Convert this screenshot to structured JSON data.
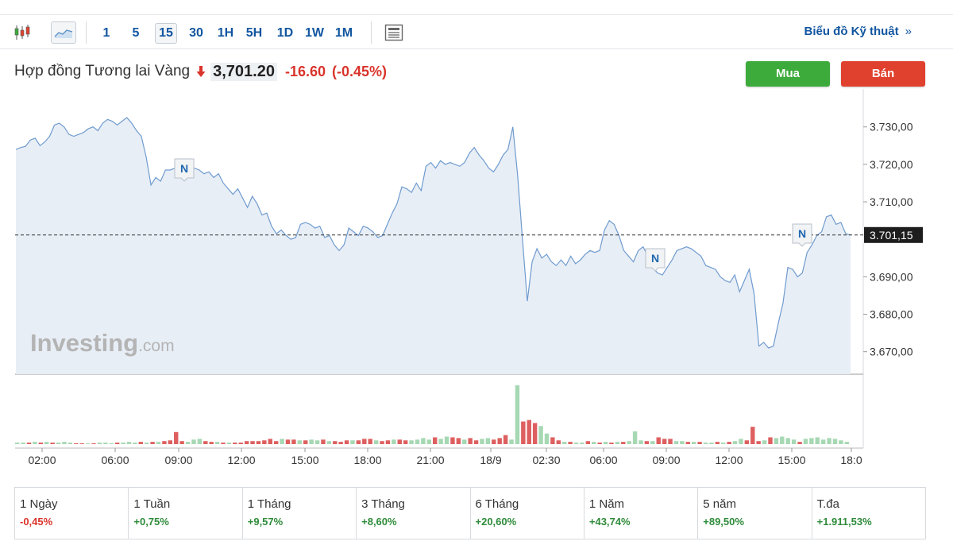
{
  "toolbar": {
    "intervals": [
      "1",
      "5",
      "15",
      "30",
      "1H",
      "5H",
      "1D",
      "1W",
      "1M"
    ],
    "active_interval": "15",
    "tech_link": "Biểu đồ Kỹ thuật",
    "tech_arrow": "»"
  },
  "instrument": {
    "name": "Hợp đồng Tương lai Vàng",
    "price": "3,701.20",
    "change": "-16.60",
    "change_pct": "(-0.45%)",
    "change_color": "#d9342b"
  },
  "actions": {
    "buy": "Mua",
    "sell": "Bán"
  },
  "watermark": {
    "brand": "Investing",
    "suffix": ".com"
  },
  "news_marker": "N",
  "chart_data": {
    "type": "area",
    "y_ticks": [
      "3.730,00",
      "3.720,00",
      "3.710,00",
      "3.700,00",
      "3.690,00",
      "3.680,00",
      "3.670,00"
    ],
    "y_tick_values": [
      3730,
      3720,
      3710,
      3700,
      3690,
      3680,
      3670
    ],
    "ylim": [
      3664,
      3738
    ],
    "current_value": 3701.15,
    "current_label": "3.701,15",
    "x_ticks": [
      "02:00",
      "06:00",
      "09:00",
      "12:00",
      "15:00",
      "18:00",
      "21:00",
      "18/9",
      "02:30",
      "06:00",
      "09:00",
      "12:00",
      "15:00",
      "18:0"
    ],
    "series": [
      {
        "values": [
          3724.0,
          3724.5,
          3724.8,
          3726.5,
          3727.0,
          3725.0,
          3726.0,
          3727.5,
          3730.5,
          3731.0,
          3730.0,
          3728.0,
          3727.5,
          3728.0,
          3728.5,
          3729.5,
          3730.0,
          3729.0,
          3731.0,
          3732.0,
          3731.5,
          3730.5,
          3731.5,
          3732.5,
          3731.0,
          3729.0,
          3727.5,
          3722.0,
          3714.5,
          3716.5,
          3715.5,
          3718.5,
          3718.5,
          3719.0,
          3718.0,
          3718.5,
          3718.5,
          3719.0,
          3718.5,
          3717.5,
          3718.0,
          3716.5,
          3717.5,
          3715.0,
          3713.5,
          3712.0,
          3713.5,
          3711.0,
          3708.5,
          3711.5,
          3709.5,
          3706.5,
          3707.0,
          3703.5,
          3701.5,
          3702.5,
          3701.0,
          3700.0,
          3700.5,
          3704.0,
          3704.5,
          3704.0,
          3703.0,
          3703.5,
          3700.5,
          3701.0,
          3698.5,
          3697.0,
          3698.5,
          3703.0,
          3702.0,
          3701.0,
          3703.5,
          3703.0,
          3702.0,
          3700.5,
          3701.0,
          3704.0,
          3707.0,
          3709.5,
          3714.0,
          3713.5,
          3712.5,
          3715.0,
          3713.0,
          3719.5,
          3720.5,
          3719.0,
          3721.0,
          3720.0,
          3720.5,
          3720.0,
          3719.5,
          3720.5,
          3723.0,
          3724.5,
          3722.5,
          3721.0,
          3719.0,
          3718.0,
          3720.0,
          3722.5,
          3724.0,
          3730.0,
          3717.0,
          3700.0,
          3683.5,
          3694.0,
          3697.5,
          3695.0,
          3696.0,
          3694.0,
          3693.0,
          3694.5,
          3693.0,
          3695.5,
          3693.5,
          3694.5,
          3696.0,
          3697.0,
          3696.5,
          3697.0,
          3702.5,
          3705.0,
          3704.0,
          3701.0,
          3697.0,
          3695.5,
          3694.0,
          3697.0,
          3698.0,
          3695.5,
          3692.5,
          3691.0,
          3690.5,
          3692.5,
          3694.5,
          3697.0,
          3697.5,
          3698.0,
          3697.5,
          3696.5,
          3695.5,
          3693.0,
          3692.5,
          3692.0,
          3690.0,
          3689.0,
          3688.5,
          3690.5,
          3686.0,
          3689.0,
          3692.0,
          3685.5,
          3671.5,
          3672.5,
          3671.0,
          3671.5,
          3677.5,
          3683.0,
          3692.5,
          3692.0,
          3690.0,
          3691.0,
          3696.5,
          3698.5,
          3701.0,
          3702.0,
          3706.0,
          3706.5,
          3704.0,
          3704.5,
          3701.5,
          3701.15
        ]
      }
    ],
    "volume": [
      {
        "v": 2,
        "c": "g"
      },
      {
        "v": 2,
        "c": "g"
      },
      {
        "v": 2,
        "c": "r"
      },
      {
        "v": 3,
        "c": "g"
      },
      {
        "v": 2,
        "c": "r"
      },
      {
        "v": 3,
        "c": "g"
      },
      {
        "v": 2,
        "c": "r"
      },
      {
        "v": 2,
        "c": "g"
      },
      {
        "v": 3,
        "c": "g"
      },
      {
        "v": 2,
        "c": "g"
      },
      {
        "v": 1,
        "c": "r"
      },
      {
        "v": 1,
        "c": "r"
      },
      {
        "v": 1,
        "c": "g"
      },
      {
        "v": 1,
        "c": "r"
      },
      {
        "v": 2,
        "c": "g"
      },
      {
        "v": 2,
        "c": "g"
      },
      {
        "v": 1,
        "c": "g"
      },
      {
        "v": 2,
        "c": "r"
      },
      {
        "v": 2,
        "c": "g"
      },
      {
        "v": 3,
        "c": "g"
      },
      {
        "v": 2,
        "c": "g"
      },
      {
        "v": 3,
        "c": "r"
      },
      {
        "v": 2,
        "c": "g"
      },
      {
        "v": 3,
        "c": "r"
      },
      {
        "v": 3,
        "c": "g"
      },
      {
        "v": 4,
        "c": "r"
      },
      {
        "v": 5,
        "c": "r"
      },
      {
        "v": 16,
        "c": "r"
      },
      {
        "v": 4,
        "c": "r"
      },
      {
        "v": 3,
        "c": "g"
      },
      {
        "v": 6,
        "c": "g"
      },
      {
        "v": 7,
        "c": "g"
      },
      {
        "v": 4,
        "c": "r"
      },
      {
        "v": 3,
        "c": "r"
      },
      {
        "v": 3,
        "c": "g"
      },
      {
        "v": 2,
        "c": "r"
      },
      {
        "v": 2,
        "c": "g"
      },
      {
        "v": 2,
        "c": "r"
      },
      {
        "v": 2,
        "c": "r"
      },
      {
        "v": 4,
        "c": "r"
      },
      {
        "v": 4,
        "c": "r"
      },
      {
        "v": 4,
        "c": "r"
      },
      {
        "v": 5,
        "c": "r"
      },
      {
        "v": 7,
        "c": "r"
      },
      {
        "v": 4,
        "c": "r"
      },
      {
        "v": 7,
        "c": "g"
      },
      {
        "v": 6,
        "c": "r"
      },
      {
        "v": 6,
        "c": "r"
      },
      {
        "v": 5,
        "c": "g"
      },
      {
        "v": 5,
        "c": "r"
      },
      {
        "v": 6,
        "c": "g"
      },
      {
        "v": 5,
        "c": "g"
      },
      {
        "v": 6,
        "c": "r"
      },
      {
        "v": 4,
        "c": "g"
      },
      {
        "v": 4,
        "c": "r"
      },
      {
        "v": 3,
        "c": "r"
      },
      {
        "v": 5,
        "c": "r"
      },
      {
        "v": 5,
        "c": "g"
      },
      {
        "v": 5,
        "c": "r"
      },
      {
        "v": 7,
        "c": "r"
      },
      {
        "v": 7,
        "c": "r"
      },
      {
        "v": 5,
        "c": "g"
      },
      {
        "v": 4,
        "c": "r"
      },
      {
        "v": 5,
        "c": "r"
      },
      {
        "v": 6,
        "c": "g"
      },
      {
        "v": 6,
        "c": "r"
      },
      {
        "v": 5,
        "c": "r"
      },
      {
        "v": 5,
        "c": "g"
      },
      {
        "v": 6,
        "c": "g"
      },
      {
        "v": 8,
        "c": "g"
      },
      {
        "v": 6,
        "c": "g"
      },
      {
        "v": 9,
        "c": "r"
      },
      {
        "v": 7,
        "c": "g"
      },
      {
        "v": 10,
        "c": "g"
      },
      {
        "v": 9,
        "c": "r"
      },
      {
        "v": 8,
        "c": "r"
      },
      {
        "v": 6,
        "c": "g"
      },
      {
        "v": 8,
        "c": "r"
      },
      {
        "v": 5,
        "c": "r"
      },
      {
        "v": 7,
        "c": "g"
      },
      {
        "v": 8,
        "c": "g"
      },
      {
        "v": 6,
        "c": "r"
      },
      {
        "v": 8,
        "c": "r"
      },
      {
        "v": 12,
        "c": "r"
      },
      {
        "v": 6,
        "c": "g"
      },
      {
        "v": 78,
        "c": "g"
      },
      {
        "v": 30,
        "c": "r"
      },
      {
        "v": 32,
        "c": "r"
      },
      {
        "v": 28,
        "c": "r"
      },
      {
        "v": 24,
        "c": "g"
      },
      {
        "v": 14,
        "c": "g"
      },
      {
        "v": 9,
        "c": "r"
      },
      {
        "v": 5,
        "c": "r"
      },
      {
        "v": 3,
        "c": "g"
      },
      {
        "v": 3,
        "c": "r"
      },
      {
        "v": 2,
        "c": "g"
      },
      {
        "v": 2,
        "c": "g"
      },
      {
        "v": 4,
        "c": "r"
      },
      {
        "v": 3,
        "c": "g"
      },
      {
        "v": 2,
        "c": "r"
      },
      {
        "v": 3,
        "c": "g"
      },
      {
        "v": 2,
        "c": "r"
      },
      {
        "v": 3,
        "c": "g"
      },
      {
        "v": 3,
        "c": "r"
      },
      {
        "v": 4,
        "c": "g"
      },
      {
        "v": 17,
        "c": "g"
      },
      {
        "v": 5,
        "c": "g"
      },
      {
        "v": 4,
        "c": "r"
      },
      {
        "v": 4,
        "c": "g"
      },
      {
        "v": 9,
        "c": "r"
      },
      {
        "v": 7,
        "c": "r"
      },
      {
        "v": 7,
        "c": "r"
      },
      {
        "v": 4,
        "c": "g"
      },
      {
        "v": 4,
        "c": "g"
      },
      {
        "v": 3,
        "c": "r"
      },
      {
        "v": 3,
        "c": "g"
      },
      {
        "v": 3,
        "c": "r"
      },
      {
        "v": 2,
        "c": "g"
      },
      {
        "v": 2,
        "c": "g"
      },
      {
        "v": 3,
        "c": "r"
      },
      {
        "v": 2,
        "c": "g"
      },
      {
        "v": 3,
        "c": "r"
      },
      {
        "v": 4,
        "c": "g"
      },
      {
        "v": 7,
        "c": "g"
      },
      {
        "v": 5,
        "c": "r"
      },
      {
        "v": 23,
        "c": "r"
      },
      {
        "v": 4,
        "c": "r"
      },
      {
        "v": 5,
        "c": "g"
      },
      {
        "v": 9,
        "c": "r"
      },
      {
        "v": 8,
        "c": "g"
      },
      {
        "v": 10,
        "c": "g"
      },
      {
        "v": 8,
        "c": "g"
      },
      {
        "v": 6,
        "c": "g"
      },
      {
        "v": 3,
        "c": "r"
      },
      {
        "v": 7,
        "c": "g"
      },
      {
        "v": 8,
        "c": "g"
      },
      {
        "v": 9,
        "c": "g"
      },
      {
        "v": 6,
        "c": "g"
      },
      {
        "v": 8,
        "c": "g"
      },
      {
        "v": 7,
        "c": "g"
      },
      {
        "v": 5,
        "c": "g"
      },
      {
        "v": 3,
        "c": "g"
      }
    ]
  },
  "performance": [
    {
      "label": "1 Ngày",
      "value": "-0,45%",
      "color": "#d9342b"
    },
    {
      "label": "1 Tuần",
      "value": "+0,75%",
      "color": "#2e8b3a"
    },
    {
      "label": "1 Tháng",
      "value": "+9,57%",
      "color": "#2e8b3a"
    },
    {
      "label": "3 Tháng",
      "value": "+8,60%",
      "color": "#2e8b3a"
    },
    {
      "label": "6 Tháng",
      "value": "+20,60%",
      "color": "#2e8b3a"
    },
    {
      "label": "1 Năm",
      "value": "+43,74%",
      "color": "#2e8b3a"
    },
    {
      "label": "5 năm",
      "value": "+89,50%",
      "color": "#2e8b3a"
    },
    {
      "label": "T.đa",
      "value": "+1.911,53%",
      "color": "#2e8b3a"
    }
  ]
}
